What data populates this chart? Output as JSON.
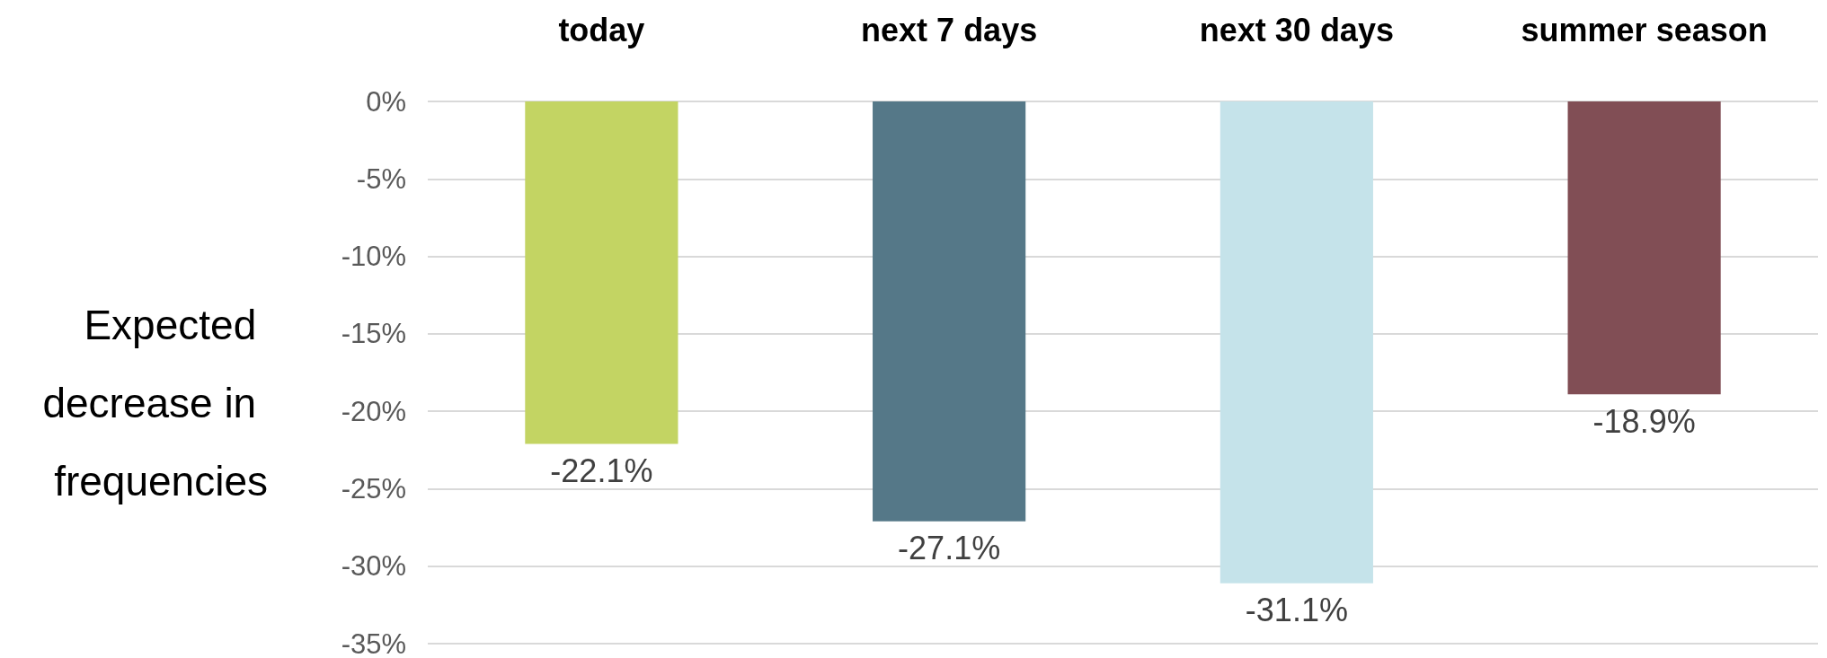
{
  "chart_data": {
    "type": "bar",
    "ylabel": "Expected decrease in frequencies",
    "categories": [
      "today",
      "next 7 days",
      "next 30 days",
      "summer season"
    ],
    "values": [
      -22.1,
      -27.1,
      -31.1,
      -18.9
    ],
    "colors": [
      "#c3d463",
      "#557888",
      "#c5e3ea",
      "#814e55"
    ],
    "value_labels": [
      "-22.1%",
      "-27.1%",
      "-31.1%",
      "-18.9%"
    ],
    "ylim": [
      -35,
      0
    ],
    "yticks": [
      {
        "value": 0,
        "label": "0%"
      },
      {
        "value": -5,
        "label": "-5%"
      },
      {
        "value": -10,
        "label": "-10%"
      },
      {
        "value": -15,
        "label": "-15%"
      },
      {
        "value": -20,
        "label": "-20%"
      },
      {
        "value": -25,
        "label": "-25%"
      },
      {
        "value": -30,
        "label": "-30%"
      },
      {
        "value": -35,
        "label": "-35%"
      }
    ],
    "grid": "y"
  }
}
